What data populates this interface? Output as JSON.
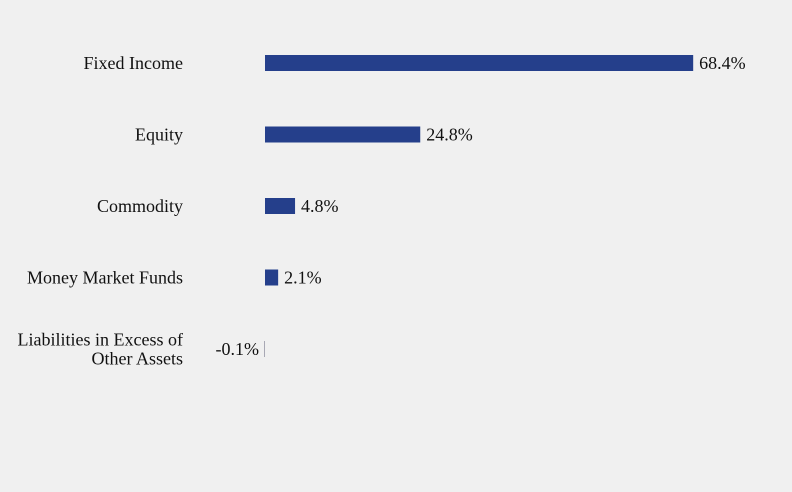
{
  "chart_data": {
    "type": "bar",
    "orientation": "horizontal",
    "categories": [
      [
        "Fixed Income"
      ],
      [
        "Equity"
      ],
      [
        "Commodity"
      ],
      [
        "Money Market Funds"
      ],
      [
        "Liabilities in Excess of",
        "Other Assets"
      ]
    ],
    "values": [
      68.4,
      24.8,
      4.8,
      2.1,
      -0.1
    ],
    "value_labels": [
      "68.4%",
      "24.8%",
      "4.8%",
      "2.1%",
      "-0.1%"
    ],
    "unit": "%",
    "title": "",
    "xlabel": "",
    "ylabel": "",
    "grid": false,
    "legend": "none",
    "bar_color": "#253f8b",
    "background": "#f0f0f0",
    "text_color": "#111111"
  }
}
